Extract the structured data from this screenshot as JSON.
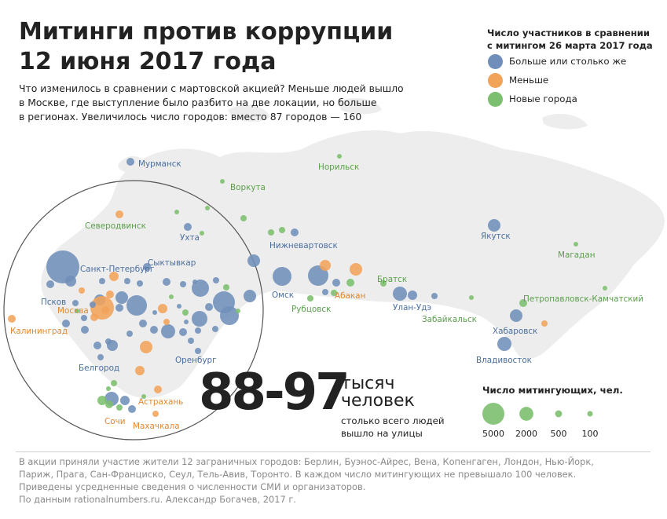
{
  "title": {
    "line1": "Митинги против коррупции",
    "line2": "12 июня 2017 года"
  },
  "subtitle": {
    "line1": "Что изменилось в сравнении с мартовской акцией? Меньше людей вышло",
    "line2": "в Москве, где  выступление было разбито на две локации, но больше",
    "line3": "в регионах. Увеличилось число городов: вместо 87 городов — 160"
  },
  "legend": {
    "title_line1": "Число участников в сравнении",
    "title_line2": "с митингом 26 марта 2017 года",
    "items": [
      {
        "label": "Больше или столько же",
        "color": "#6f8fba"
      },
      {
        "label": "Меньше",
        "color": "#f2a35a"
      },
      {
        "label": "Новые города",
        "color": "#7cbf6e"
      }
    ]
  },
  "stat": {
    "number": "88-97",
    "unit_line1": "тысяч",
    "unit_line2": "человек",
    "desc_line1": "столько всего людей",
    "desc_line2": "вышло на улицы"
  },
  "size_legend": {
    "title": "Число митингующих, чел.",
    "items": [
      {
        "label": "5000",
        "value": 5000
      },
      {
        "label": "2000",
        "value": 2000
      },
      {
        "label": "500",
        "value": 500
      },
      {
        "label": "100",
        "value": 100
      }
    ]
  },
  "footer": {
    "line1": "В акции приняли участие жители 12 заграничных городов: Берлин, Буэнос-Айрес, Вена, Копенгаген, Лондон, Нью-Йорк,",
    "line2": "Париж, Прага, Сан-Франциско, Сеул, Тель-Авив, Торонто. В каждом число митингующих не превышало 100 человек.",
    "line3": "Приведены усредненные сведения о численности СМИ и организаторов.",
    "line4": "По данным rationalnumbers.ru. Александр Богачев, 2017 г."
  },
  "colors": {
    "more": "#6f8fba",
    "less": "#f2a35a",
    "new": "#7cbf6e",
    "land": "#ededed",
    "more_label": "#4a6e9e",
    "less_label": "#e0882f",
    "new_label": "#5a9e4b"
  },
  "cities": [
    {
      "name": "Мурманск",
      "cat": "more"
    },
    {
      "name": "Норильск",
      "cat": "new"
    },
    {
      "name": "Воркута",
      "cat": "new"
    },
    {
      "name": "Северодвинск",
      "cat": "new"
    },
    {
      "name": "Ухта",
      "cat": "more"
    },
    {
      "name": "Сыктывкар",
      "cat": "more"
    },
    {
      "name": "Санкт-Петербург",
      "cat": "more"
    },
    {
      "name": "Нижневартовск",
      "cat": "more"
    },
    {
      "name": "Якутск",
      "cat": "more"
    },
    {
      "name": "Магадан",
      "cat": "new"
    },
    {
      "name": "Псков",
      "cat": "more"
    },
    {
      "name": "Москва",
      "cat": "less"
    },
    {
      "name": "Калининград",
      "cat": "less"
    },
    {
      "name": "Омск",
      "cat": "more"
    },
    {
      "name": "Братск",
      "cat": "new"
    },
    {
      "name": "Абакан",
      "cat": "less"
    },
    {
      "name": "Рубцовск",
      "cat": "new"
    },
    {
      "name": "Улан-Удэ",
      "cat": "more"
    },
    {
      "name": "Забайкальск",
      "cat": "new"
    },
    {
      "name": "Петропавловск-Камчатский",
      "cat": "new"
    },
    {
      "name": "Хабаровск",
      "cat": "more"
    },
    {
      "name": "Владивосток",
      "cat": "more"
    },
    {
      "name": "Оренбург",
      "cat": "more"
    },
    {
      "name": "Белгород",
      "cat": "more"
    },
    {
      "name": "Астрахань",
      "cat": "less"
    },
    {
      "name": "Сочи",
      "cat": "less"
    },
    {
      "name": "Махачкала",
      "cat": "less"
    }
  ]
}
